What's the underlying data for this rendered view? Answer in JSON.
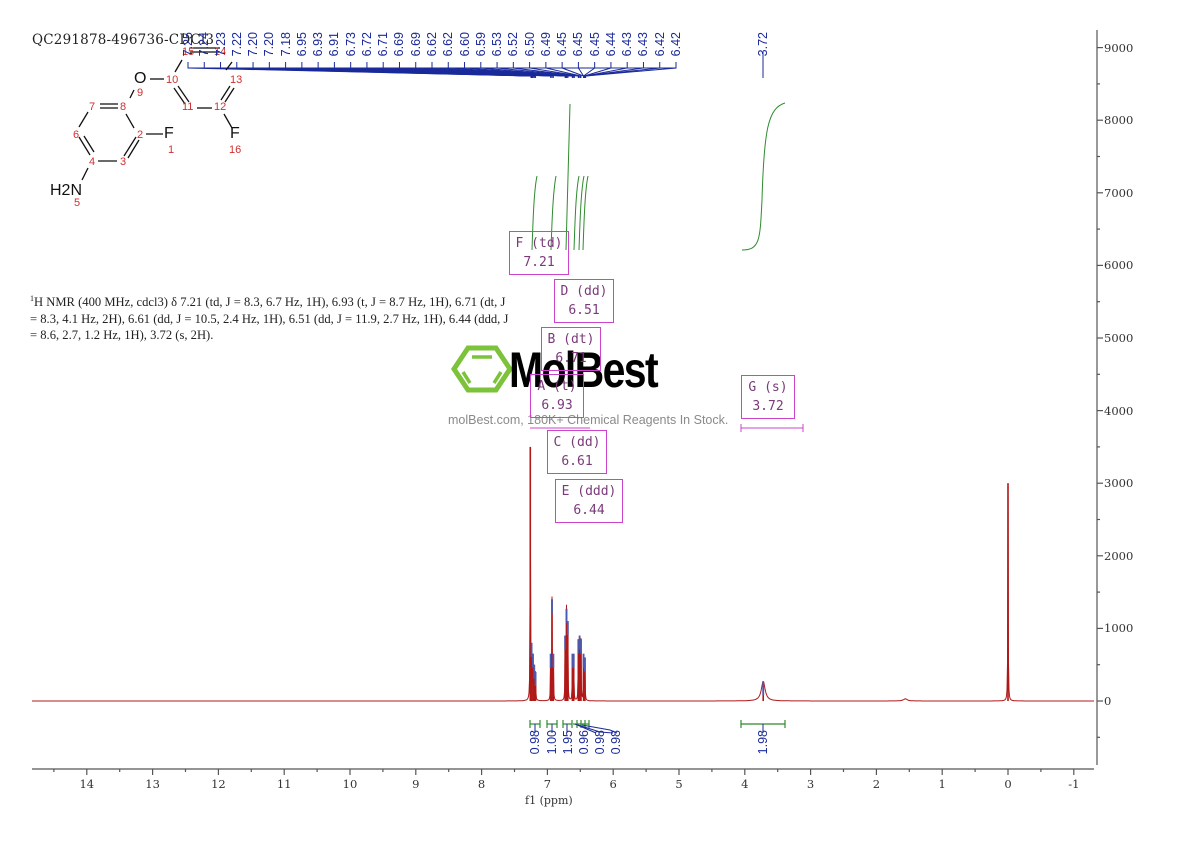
{
  "chart_data": {
    "type": "line",
    "title": "QC291878-496736-CDCl3",
    "xlabel": "f1 (ppm)",
    "ylabel": "",
    "xlim": [
      14.85,
      -1.3
    ],
    "ylim": [
      -900,
      9400
    ],
    "x_ticks": [
      14,
      13,
      12,
      11,
      10,
      9,
      8,
      7,
      6,
      5,
      4,
      3,
      2,
      1,
      0,
      -1
    ],
    "y_ticks": [
      0,
      1000,
      2000,
      3000,
      4000,
      5000,
      6000,
      7000,
      8000,
      9000
    ],
    "grid": false,
    "peaks": [
      {
        "ppm": 7.26,
        "intensity": 3500,
        "note": "CDCl3 residual"
      },
      {
        "ppm": 7.24,
        "intensity": 800
      },
      {
        "ppm": 7.22,
        "intensity": 650
      },
      {
        "ppm": 7.2,
        "intensity": 500
      },
      {
        "ppm": 7.18,
        "intensity": 400
      },
      {
        "ppm": 6.95,
        "intensity": 650
      },
      {
        "ppm": 6.93,
        "intensity": 1400
      },
      {
        "ppm": 6.91,
        "intensity": 650
      },
      {
        "ppm": 6.73,
        "intensity": 900
      },
      {
        "ppm": 6.71,
        "intensity": 1270
      },
      {
        "ppm": 6.69,
        "intensity": 1100
      },
      {
        "ppm": 6.62,
        "intensity": 650
      },
      {
        "ppm": 6.6,
        "intensity": 650
      },
      {
        "ppm": 6.53,
        "intensity": 850
      },
      {
        "ppm": 6.51,
        "intensity": 900
      },
      {
        "ppm": 6.49,
        "intensity": 850
      },
      {
        "ppm": 6.45,
        "intensity": 650
      },
      {
        "ppm": 6.43,
        "intensity": 600
      },
      {
        "ppm": 3.72,
        "intensity": 270,
        "broad": true
      },
      {
        "ppm": 1.56,
        "intensity": 30,
        "broad": true
      },
      {
        "ppm": 0.0,
        "intensity": 3000,
        "note": "TMS"
      }
    ],
    "peak_labels": [
      "7.25",
      "7.24",
      "7.23",
      "7.22",
      "7.20",
      "7.20",
      "7.18",
      "6.95",
      "6.93",
      "6.91",
      "6.73",
      "6.72",
      "6.71",
      "6.69",
      "6.69",
      "6.62",
      "6.62",
      "6.60",
      "6.59",
      "6.53",
      "6.52",
      "6.50",
      "6.49",
      "6.45",
      "6.45",
      "6.45",
      "6.44",
      "6.43",
      "6.43",
      "6.42",
      "6.42"
    ],
    "single_peak_label": "3.72",
    "integrals": [
      {
        "ppm": 7.21,
        "value": "0.98"
      },
      {
        "ppm": 6.93,
        "value": "1.00"
      },
      {
        "ppm": 6.71,
        "value": "1.95"
      },
      {
        "ppm": 6.61,
        "value": "0.96"
      },
      {
        "ppm": 6.51,
        "value": "0.98"
      },
      {
        "ppm": 6.44,
        "value": "0.98"
      },
      {
        "ppm": 3.72,
        "value": "1.98"
      }
    ],
    "multiplets": [
      {
        "label": "F (td)",
        "shift": "7.21"
      },
      {
        "label": "D (dd)",
        "shift": "6.51"
      },
      {
        "label": "B (dt)",
        "shift": "6.71"
      },
      {
        "label": "A (t)",
        "shift": "6.93"
      },
      {
        "label": "C (dd)",
        "shift": "6.61"
      },
      {
        "label": "E (ddd)",
        "shift": "6.44"
      },
      {
        "label": "G (s)",
        "shift": "3.72"
      }
    ],
    "colors": {
      "spectrum": "#b01818",
      "peak_markers": "#1a2a9a",
      "integral": "#2e8b2e",
      "multiplet_box": "#cc44cc",
      "axis": "#555555"
    }
  },
  "header": {
    "sample_id": "QC291878-496736-CDCl3"
  },
  "nmr_description": {
    "nucleus_sup": "1",
    "text": "H NMR (400 MHz, cdcl3) δ 7.21 (td, J = 8.3, 6.7 Hz, 1H), 6.93 (t, J = 8.7 Hz, 1H), 6.71 (dt, J = 8.3, 4.1 Hz, 2H), 6.61 (dd, J = 10.5, 2.4 Hz, 1H), 6.51 (dd, J = 11.9, 2.7 Hz, 1H), 6.44 (ddd, J = 8.6, 2.7, 1.2 Hz, 1H), 3.72 (s, 2H)."
  },
  "structure": {
    "atoms": {
      "O": "O",
      "F1": "F",
      "F2": "F",
      "NH2": "H2N"
    },
    "numbers": [
      "1",
      "2",
      "3",
      "4",
      "5",
      "6",
      "7",
      "8",
      "9",
      "10",
      "11",
      "12",
      "13",
      "14",
      "15",
      "16"
    ]
  },
  "watermark": {
    "brand": "MolBest",
    "tagline": "molBest.com, 180K+ Chemical Reagents In Stock."
  },
  "axis": {
    "xlabel": "f1 (ppm)",
    "x_ticks": [
      "14",
      "13",
      "12",
      "11",
      "10",
      "9",
      "8",
      "7",
      "6",
      "5",
      "4",
      "3",
      "2",
      "1",
      "0",
      "-1"
    ],
    "y_ticks": [
      "9000",
      "8000",
      "7000",
      "6000",
      "5000",
      "4000",
      "3000",
      "2000",
      "1000",
      "0"
    ]
  },
  "boxes": {
    "F": {
      "l1": "F (td)",
      "l2": "7.21"
    },
    "D": {
      "l1": "D (dd)",
      "l2": "6.51"
    },
    "B": {
      "l1": "B (dt)",
      "l2": "6.71"
    },
    "A": {
      "l1": "A (t)",
      "l2": "6.93"
    },
    "C": {
      "l1": "C (dd)",
      "l2": "6.61"
    },
    "E": {
      "l1": "E (ddd)",
      "l2": "6.44"
    },
    "G": {
      "l1": "G (s)",
      "l2": "3.72"
    }
  },
  "integral_labels": [
    "0.98",
    "1.00",
    "1.95",
    "0.96",
    "0.98",
    "0.98",
    "1.98"
  ]
}
